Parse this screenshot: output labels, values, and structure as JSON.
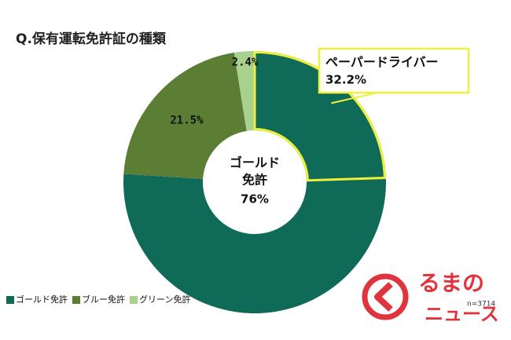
{
  "chart_data": {
    "type": "donut",
    "title": "Q.保有運転免許証の種類",
    "categories": [
      "ゴールド免許",
      "ブルー免許",
      "グリーン免許"
    ],
    "values": [
      76,
      21.5,
      2.4
    ],
    "value_labels": [
      "76%",
      "21.5%",
      "2.4%"
    ],
    "colors": [
      "#0f6b58",
      "#5b7e34",
      "#a9d18e"
    ],
    "center_label": [
      "ゴールド",
      "免許"
    ],
    "annotation": {
      "label": "ペーパードライバー",
      "value": 32.2,
      "value_label": "32.2%",
      "color": "#eef03a"
    },
    "note": "n=3714"
  },
  "logo": [
    "るまの",
    "ニュース"
  ]
}
